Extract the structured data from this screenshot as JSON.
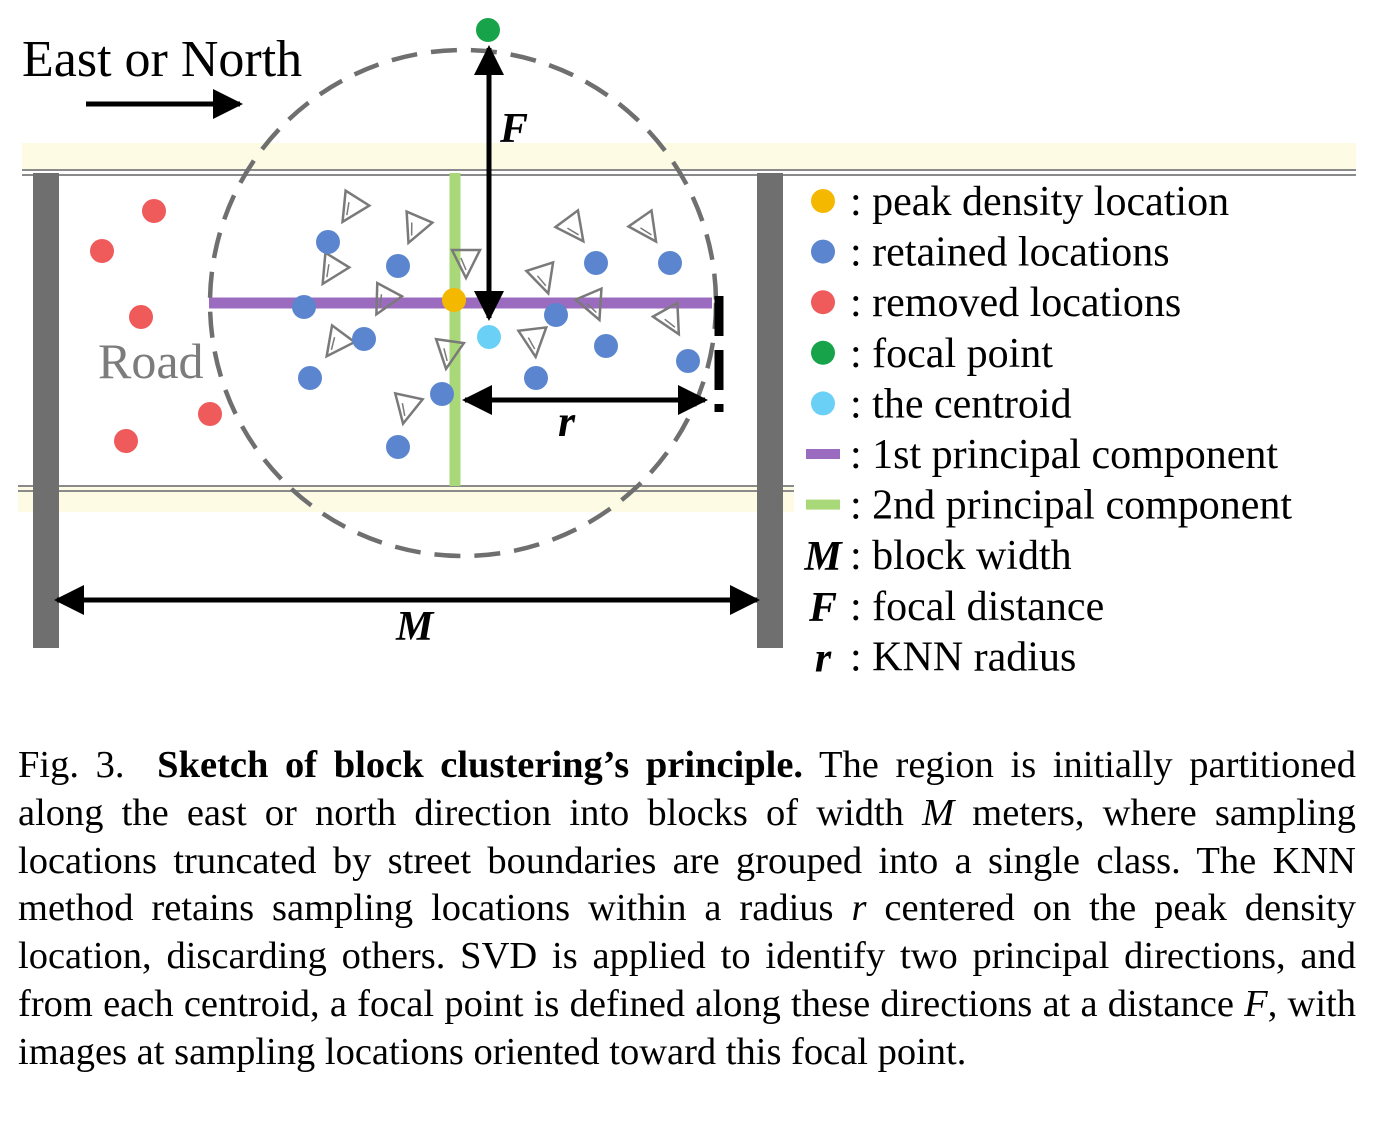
{
  "direction_label": "East or North",
  "road_label": "Road",
  "symbols": {
    "M": "M",
    "F": "F",
    "r": "r"
  },
  "legend": [
    {
      "kind": "dot",
      "color": "#f5b800",
      "text": ": peak density location"
    },
    {
      "kind": "dot",
      "color": "#5b86cf",
      "text": ": retained locations"
    },
    {
      "kind": "dot",
      "color": "#ef5a5a",
      "text": ": removed locations"
    },
    {
      "kind": "dot",
      "color": "#16a34a",
      "text": ": focal point"
    },
    {
      "kind": "dot",
      "color": "#6bd0f5",
      "text": ": the centroid"
    },
    {
      "kind": "line",
      "color": "#9b6bbf",
      "text": ": 1st principal component"
    },
    {
      "kind": "line",
      "color": "#a8d878",
      "text": ": 2nd principal component"
    },
    {
      "kind": "symbol",
      "symbol": "M",
      "text": ": block width"
    },
    {
      "kind": "symbol",
      "symbol": "F",
      "text": ": focal distance"
    },
    {
      "kind": "symbol",
      "symbol": "r",
      "text": ": KNN radius"
    }
  ],
  "colors": {
    "street_band": "#fdfbe3",
    "block_boundary": "#6f6f6f",
    "knn_circle": "#6f6f6f",
    "orientation_marker": "#7a7a7a"
  },
  "caption": {
    "label": "Fig. 3.",
    "title": "Sketch of block clustering’s principle.",
    "s1": " The region is initially partitioned along the east or north direction into blocks of width ",
    "m1": "M",
    "s2": " meters, where sampling locations truncated by street boundaries are grouped into a single class. The KNN method retains sampling locations within a radius ",
    "m2": "r",
    "s3": " centered on the peak density location, discarding others. SVD is applied to identify two principal directions, and from each centroid, a focal point is defined along these directions at a distance ",
    "m3": "F",
    "s4": ", with images at sampling locations oriented toward this focal point."
  }
}
